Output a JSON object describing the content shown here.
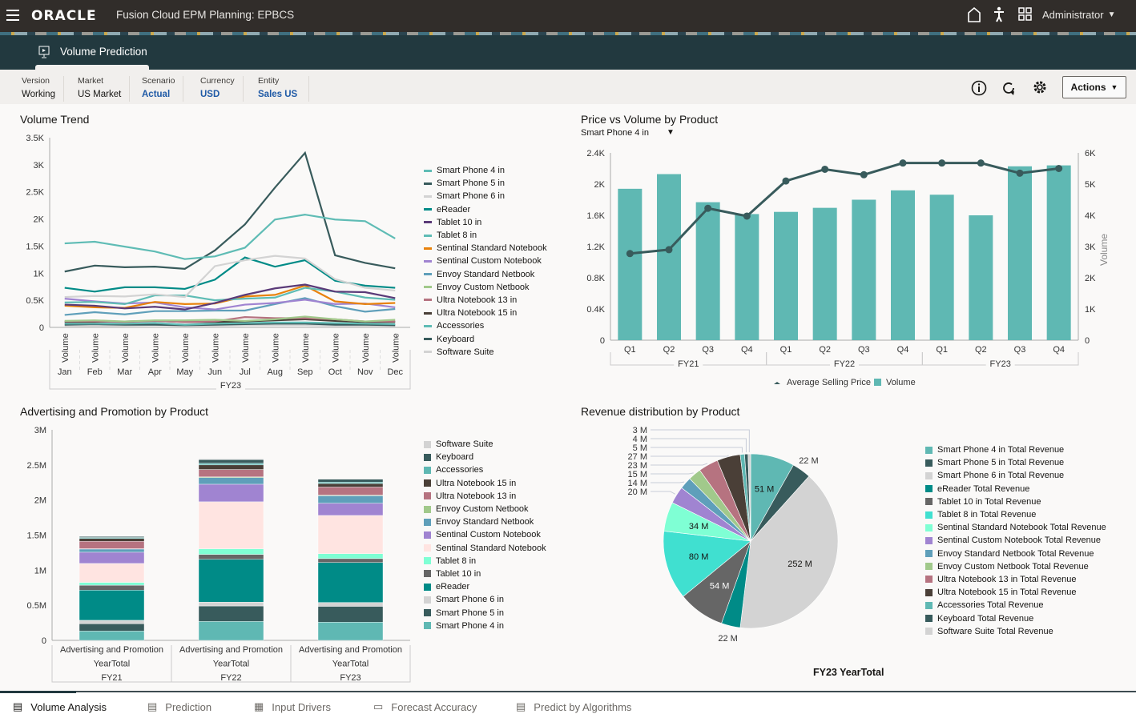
{
  "header": {
    "app_title": "Fusion Cloud EPM Planning: EPBCS",
    "logo": "ORACLE",
    "user": "Administrator",
    "icons": [
      "menu-icon",
      "home-icon",
      "accessibility-icon",
      "navigator-grid-icon"
    ]
  },
  "page": {
    "title": "Volume Prediction"
  },
  "pov": [
    {
      "label": "Version",
      "value": "Working"
    },
    {
      "label": "Market",
      "value": "US Market"
    },
    {
      "label": "Scenario",
      "value": "Actual"
    },
    {
      "label": "Currency",
      "value": "USD"
    },
    {
      "label": "Entity",
      "value": "Sales US"
    }
  ],
  "toolbar": {
    "actions_label": "Actions"
  },
  "products": [
    "Smart Phone 4 in",
    "Smart Phone 5 in",
    "Smart Phone 6 in",
    "eReader",
    "Tablet 10 in",
    "Tablet 8 in",
    "Sentinal Standard Notebook",
    "Sentinal Custom Notebook",
    "Envoy Standard Netbook",
    "Envoy Custom Netbook",
    "Ultra Notebook 13 in",
    "Ultra Notebook 15 in",
    "Accessories",
    "Keyboard",
    "Software Suite"
  ],
  "chart_data": [
    {
      "type": "line",
      "title": "Volume Trend",
      "ylim": [
        0,
        3500
      ],
      "yticks": [
        "0",
        "0.5K",
        "1K",
        "1.5K",
        "2K",
        "2.5K",
        "3K",
        "3.5K"
      ],
      "categories": [
        "Jan",
        "Feb",
        "Mar",
        "Apr",
        "May",
        "Jun",
        "Jul",
        "Aug",
        "Sep",
        "Oct",
        "Nov",
        "Dec"
      ],
      "category_sublabel": "Volume",
      "group_label": "FY23",
      "legend": "right",
      "colors": [
        "#5fbcb5",
        "#385b5c",
        "#d3d3d3",
        "#008b87",
        "#5a3a78",
        "#5fbcb5",
        "#e8820c",
        "#a084d1",
        "#5f9fba",
        "#a1c98b",
        "#b67380",
        "#4a3f37",
        "#5fbcb5",
        "#385b5c",
        "#d3d3d3"
      ],
      "series": [
        [
          1550,
          1580,
          1490,
          1400,
          1260,
          1310,
          1470,
          1990,
          2080,
          1990,
          1960,
          1640
        ],
        [
          1030,
          1140,
          1110,
          1120,
          1080,
          1420,
          1900,
          2580,
          3220,
          1330,
          1190,
          1090
        ],
        [
          560,
          580,
          570,
          610,
          560,
          1130,
          1240,
          1320,
          1270,
          890,
          730,
          680
        ],
        [
          730,
          660,
          740,
          740,
          710,
          880,
          1290,
          1120,
          1240,
          860,
          770,
          730
        ],
        [
          420,
          400,
          350,
          380,
          330,
          450,
          600,
          720,
          790,
          660,
          650,
          540
        ],
        [
          460,
          470,
          430,
          590,
          590,
          500,
          530,
          550,
          730,
          660,
          550,
          510
        ],
        [
          400,
          370,
          360,
          470,
          430,
          440,
          570,
          600,
          770,
          480,
          430,
          450
        ],
        [
          530,
          480,
          440,
          460,
          370,
          330,
          420,
          450,
          510,
          430,
          440,
          370
        ],
        [
          230,
          280,
          240,
          300,
          300,
          310,
          310,
          430,
          540,
          390,
          290,
          340
        ],
        [
          120,
          130,
          110,
          130,
          130,
          140,
          120,
          150,
          200,
          150,
          110,
          140
        ],
        [
          110,
          110,
          100,
          120,
          100,
          110,
          190,
          170,
          170,
          150,
          110,
          110
        ],
        [
          100,
          100,
          110,
          120,
          100,
          100,
          110,
          130,
          150,
          120,
          100,
          100
        ],
        [
          70,
          70,
          70,
          80,
          50,
          70,
          80,
          90,
          90,
          80,
          70,
          60
        ],
        [
          50,
          60,
          50,
          50,
          40,
          50,
          60,
          70,
          70,
          50,
          50,
          40
        ],
        [
          30,
          30,
          30,
          40,
          30,
          30,
          40,
          40,
          40,
          30,
          30,
          30
        ]
      ]
    },
    {
      "type": "bar+line",
      "title": "Price vs Volume by Product",
      "selector": "Smart Phone 4 in",
      "categories": [
        "Q1",
        "Q2",
        "Q3",
        "Q4",
        "Q1",
        "Q2",
        "Q3",
        "Q4",
        "Q1",
        "Q2",
        "Q3",
        "Q4"
      ],
      "groups": [
        "FY21",
        "FY22",
        "FY23"
      ],
      "left_axis": {
        "ylim": [
          0,
          2400
        ],
        "ticks": [
          "0",
          "0.4K",
          "0.8K",
          "1.2K",
          "1.6K",
          "2K",
          "2.4K"
        ]
      },
      "right_axis": {
        "label": "Volume",
        "ylim": [
          0,
          6000
        ],
        "ticks": [
          "0",
          "1K",
          "2K",
          "3K",
          "4K",
          "5K",
          "6K"
        ]
      },
      "series": [
        {
          "name": "Average Selling Price",
          "type": "line",
          "axis": "left",
          "color": "#385b5c",
          "values": [
            1110,
            1160,
            1690,
            1590,
            2040,
            2190,
            2120,
            2270,
            2270,
            2270,
            2140,
            2200
          ]
        },
        {
          "name": "Volume",
          "type": "bar",
          "axis": "right",
          "color": "#5fb8b3",
          "values": [
            4850,
            5320,
            4420,
            4040,
            4110,
            4240,
            4500,
            4800,
            4660,
            4000,
            5570,
            5600
          ]
        }
      ],
      "legend": "bottom"
    },
    {
      "type": "stacked-bar",
      "title": "Advertising and Promotion by Product",
      "ylim": [
        0,
        3000000
      ],
      "yticks": [
        "0",
        "0.5M",
        "1M",
        "1.5M",
        "2M",
        "2.5M",
        "3M"
      ],
      "categories": [
        [
          "Advertising and Promotion",
          "YearTotal",
          "FY21"
        ],
        [
          "Advertising and Promotion",
          "YearTotal",
          "FY22"
        ],
        [
          "Advertising and Promotion",
          "YearTotal",
          "FY23"
        ]
      ],
      "colors": [
        "#5fb8b3",
        "#385b5c",
        "#d3d3d3",
        "#008b87",
        "#666666",
        "#40e0d0",
        "#7fffd4",
        "#a084d1",
        "#5f9fba",
        "#a1c98b",
        "#b67380",
        "#4a3f37",
        "#5fb8b3",
        "#385b5c",
        "#d3d3d3"
      ],
      "series_colors_note": "",
      "values": [
        [
          133000,
          103000,
          50000,
          430000,
          70000,
          40000,
          270000,
          160000,
          45000,
          5000,
          105000,
          40000,
          15000,
          15000,
          5000
        ],
        [
          270000,
          220000,
          55000,
          610000,
          70000,
          80000,
          670000,
          250000,
          95000,
          10000,
          105000,
          65000,
          25000,
          50000,
          10000
        ],
        [
          260000,
          225000,
          55000,
          570000,
          55000,
          70000,
          545000,
          175000,
          105000,
          10000,
          115000,
          50000,
          20000,
          40000,
          10000
        ]
      ],
      "segment_colors": [
        "#5fb8b3",
        "#385b5c",
        "#d3d3d3",
        "#008b87",
        "#666666",
        "#7fffd4",
        "#ffe4e1",
        "#a084d1",
        "#5f9fba",
        "#a1c98b",
        "#b67380",
        "#4a3f37",
        "#5fb8b3",
        "#385b5c",
        "#d3d3d3"
      ],
      "legend": "right"
    },
    {
      "type": "pie",
      "title": "Revenue distribution by Product",
      "footer": "FY23 YearTotal",
      "labels": [
        "Smart Phone 4 in Total Revenue",
        "Smart Phone 5 in Total Revenue",
        "Smart Phone 6 in Total Revenue",
        "eReader Total Revenue",
        "Tablet 10 in Total Revenue",
        "Tablet 8 in Total Revenue",
        "Sentinal Standard Notebook Total Revenue",
        "Sentinal Custom Notebook Total Revenue",
        "Envoy Standard Netbook Total Revenue",
        "Envoy Custom Netbook Total Revenue",
        "Ultra Notebook 13 in Total Revenue",
        "Ultra Notebook 15 in Total Revenue",
        "Accessories Total Revenue",
        "Keyboard Total Revenue",
        "Software Suite Total Revenue"
      ],
      "values": [
        51,
        22,
        252,
        22,
        54,
        80,
        34,
        20,
        14,
        15,
        23,
        27,
        5,
        4,
        3
      ],
      "value_labels": [
        "51 M",
        "22 M",
        "252 M",
        "22 M",
        "54 M",
        "80 M",
        "34 M",
        "20 M",
        "14 M",
        "15 M",
        "23 M",
        "27 M",
        "5 M",
        "4 M",
        "3 M"
      ],
      "colors": [
        "#5fb8b3",
        "#385b5c",
        "#d3d3d3",
        "#008b87",
        "#666666",
        "#40e0d0",
        "#7fffd4",
        "#a084d1",
        "#5f9fba",
        "#a1c98b",
        "#b67380",
        "#4a3f37",
        "#5fb8b3",
        "#385b5c",
        "#d3d3d3"
      ],
      "legend": "right"
    }
  ],
  "bottom_tabs": [
    {
      "label": "Volume Analysis",
      "icon": "form-edit-icon",
      "active": true
    },
    {
      "label": "Prediction",
      "icon": "form-edit-icon"
    },
    {
      "label": "Input Drivers",
      "icon": "calculator-form-icon"
    },
    {
      "label": "Forecast Accuracy",
      "icon": "dashboard-chart-icon"
    },
    {
      "label": "Predict by Algorithms",
      "icon": "form-edit-icon"
    }
  ]
}
